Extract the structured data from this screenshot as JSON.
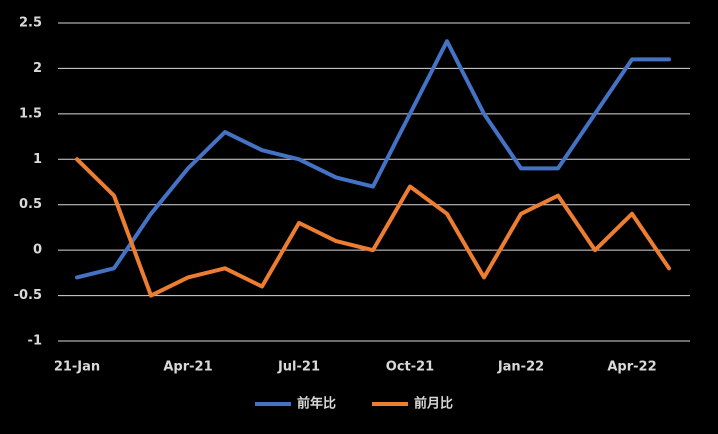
{
  "chart_data": {
    "type": "line",
    "categories": [
      "21-Jan",
      null,
      null,
      "Apr-21",
      null,
      null,
      "Jul-21",
      null,
      null,
      "Oct-21",
      null,
      null,
      "Jan-22",
      null,
      null,
      "Apr-22",
      null
    ],
    "series": [
      {
        "name": "前年比",
        "color": "#4472c4",
        "values": [
          -0.3,
          -0.2,
          0.4,
          0.9,
          1.3,
          1.1,
          1.0,
          0.8,
          0.7,
          1.5,
          2.3,
          1.5,
          0.9,
          0.9,
          1.5,
          2.1,
          2.1
        ]
      },
      {
        "name": "前月比",
        "color": "#ed7d31",
        "values": [
          1.0,
          0.6,
          -0.5,
          -0.3,
          -0.2,
          -0.4,
          0.3,
          0.1,
          0.0,
          0.7,
          0.4,
          -0.3,
          0.4,
          0.6,
          0.0,
          0.4,
          -0.2
        ]
      }
    ],
    "ylim": [
      -1,
      2.5
    ],
    "yticks": [
      -1,
      -0.5,
      0,
      0.5,
      1,
      1.5,
      2,
      2.5
    ],
    "grid": true,
    "legend": "bottom"
  }
}
